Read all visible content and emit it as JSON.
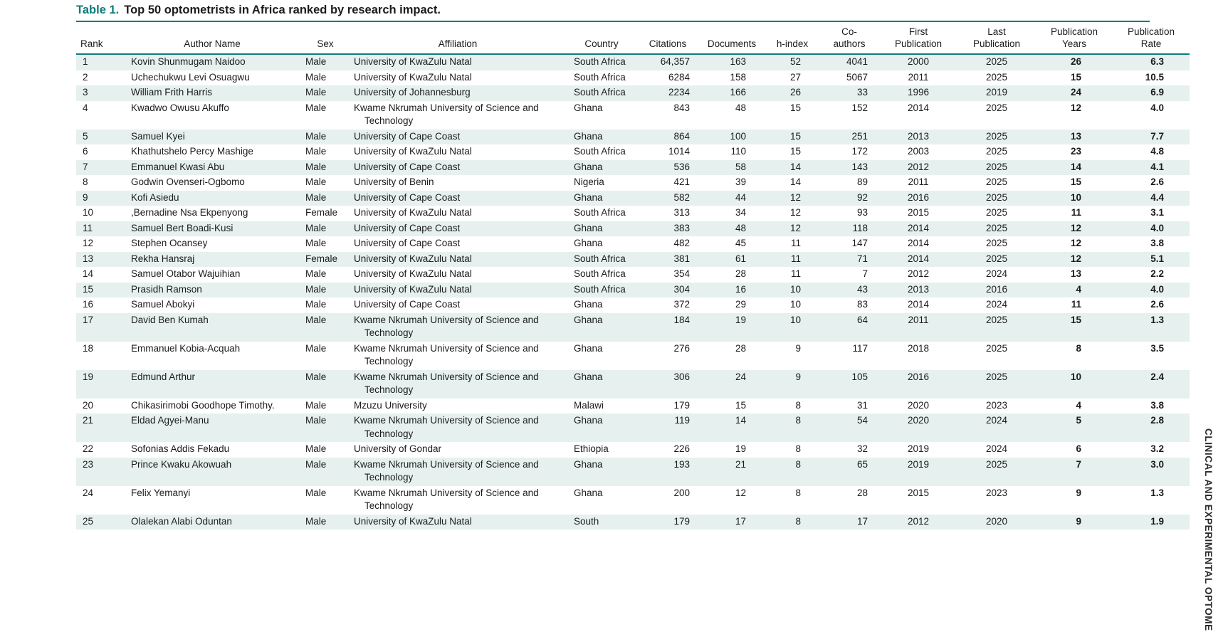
{
  "page": {
    "title_label": "Table 1.",
    "title_text": "Top 50 optometrists in Africa ranked by research impact.",
    "journal_sidebar_text": "CLINICAL AND EXPERIMENTAL OPTOME"
  },
  "colors": {
    "accent_teal": "#0e7c7b",
    "row_stripe": "#e6f0ef"
  },
  "table": {
    "columns": [
      {
        "key": "rank",
        "label": "Rank"
      },
      {
        "key": "author",
        "label": "Author Name"
      },
      {
        "key": "sex",
        "label": "Sex"
      },
      {
        "key": "affiliation",
        "label": "Affiliation"
      },
      {
        "key": "country",
        "label": "Country"
      },
      {
        "key": "citations",
        "label": "Citations"
      },
      {
        "key": "documents",
        "label": "Documents"
      },
      {
        "key": "h_index",
        "label": "h-index"
      },
      {
        "key": "co_authors",
        "label": "Co-authors"
      },
      {
        "key": "first_publication",
        "label": "First Publication"
      },
      {
        "key": "last_publication",
        "label": "Last Publication"
      },
      {
        "key": "publication_years",
        "label": "Publication Years"
      },
      {
        "key": "publication_rate",
        "label": "Publication Rate"
      }
    ],
    "rows": [
      [
        "1",
        "Kovin Shunmugam Naidoo",
        "Male",
        "University of KwaZulu Natal",
        "South Africa",
        "64,357",
        "163",
        "52",
        "4041",
        "2000",
        "2025",
        "26",
        "6.3"
      ],
      [
        "2",
        "Uchechukwu Levi Osuagwu",
        "Male",
        "University of KwaZulu Natal",
        "South Africa",
        "6284",
        "158",
        "27",
        "5067",
        "2011",
        "2025",
        "15",
        "10.5"
      ],
      [
        "3",
        "William Frith Harris",
        "Male",
        "University of Johannesburg",
        "South Africa",
        "2234",
        "166",
        "26",
        "33",
        "1996",
        "2019",
        "24",
        "6.9"
      ],
      [
        "4",
        "Kwadwo Owusu Akuffo",
        "Male",
        "Kwame Nkrumah University of Science and Technology",
        "Ghana",
        "843",
        "48",
        "15",
        "152",
        "2014",
        "2025",
        "12",
        "4.0"
      ],
      [
        "5",
        "Samuel Kyei",
        "Male",
        "University of Cape Coast",
        "Ghana",
        "864",
        "100",
        "15",
        "251",
        "2013",
        "2025",
        "13",
        "7.7"
      ],
      [
        "6",
        "Khathutshelo Percy Mashige",
        "Male",
        "University of KwaZulu Natal",
        "South Africa",
        "1014",
        "110",
        "15",
        "172",
        "2003",
        "2025",
        "23",
        "4.8"
      ],
      [
        "7",
        "Emmanuel Kwasi Abu",
        "Male",
        "University of Cape Coast",
        "Ghana",
        "536",
        "58",
        "14",
        "143",
        "2012",
        "2025",
        "14",
        "4.1"
      ],
      [
        "8",
        "Godwin Ovenseri-Ogbomo",
        "Male",
        "University of Benin",
        "Nigeria",
        "421",
        "39",
        "14",
        "89",
        "2011",
        "2025",
        "15",
        "2.6"
      ],
      [
        "9",
        "Kofi Asiedu",
        "Male",
        "University of Cape Coast",
        "Ghana",
        "582",
        "44",
        "12",
        "92",
        "2016",
        "2025",
        "10",
        "4.4"
      ],
      [
        "10",
        ",Bernadine Nsa Ekpenyong",
        "Female",
        "University of KwaZulu Natal",
        "South Africa",
        "313",
        "34",
        "12",
        "93",
        "2015",
        "2025",
        "11",
        "3.1"
      ],
      [
        "11",
        "Samuel Bert Boadi-Kusi",
        "Male",
        "University of Cape Coast",
        "Ghana",
        "383",
        "48",
        "12",
        "118",
        "2014",
        "2025",
        "12",
        "4.0"
      ],
      [
        "12",
        "Stephen Ocansey",
        "Male",
        "University of Cape Coast",
        "Ghana",
        "482",
        "45",
        "11",
        "147",
        "2014",
        "2025",
        "12",
        "3.8"
      ],
      [
        "13",
        "Rekha Hansraj",
        "Female",
        "University of KwaZulu Natal",
        "South Africa",
        "381",
        "61",
        "11",
        "71",
        "2014",
        "2025",
        "12",
        "5.1"
      ],
      [
        "14",
        "Samuel Otabor Wajuihian",
        "Male",
        "University of KwaZulu Natal",
        "South Africa",
        "354",
        "28",
        "11",
        "7",
        "2012",
        "2024",
        "13",
        "2.2"
      ],
      [
        "15",
        "Prasidh Ramson",
        "Male",
        "University of KwaZulu Natal",
        "South Africa",
        "304",
        "16",
        "10",
        "43",
        "2013",
        "2016",
        "4",
        "4.0"
      ],
      [
        "16",
        "Samuel Abokyi",
        "Male",
        "University of Cape Coast",
        "Ghana",
        "372",
        "29",
        "10",
        "83",
        "2014",
        "2024",
        "11",
        "2.6"
      ],
      [
        "17",
        "David Ben Kumah",
        "Male",
        "Kwame Nkrumah University of Science and Technology",
        "Ghana",
        "184",
        "19",
        "10",
        "64",
        "2011",
        "2025",
        "15",
        "1.3"
      ],
      [
        "18",
        "Emmanuel Kobia-Acquah",
        "Male",
        "Kwame Nkrumah University of Science and Technology",
        "Ghana",
        "276",
        "28",
        "9",
        "117",
        "2018",
        "2025",
        "8",
        "3.5"
      ],
      [
        "19",
        "Edmund Arthur",
        "Male",
        "Kwame Nkrumah University of Science and Technology",
        "Ghana",
        "306",
        "24",
        "9",
        "105",
        "2016",
        "2025",
        "10",
        "2.4"
      ],
      [
        "20",
        "Chikasirimobi Goodhope Timothy.",
        "Male",
        "Mzuzu University",
        "Malawi",
        "179",
        "15",
        "8",
        "31",
        "2020",
        "2023",
        "4",
        "3.8"
      ],
      [
        "21",
        "Eldad Agyei-Manu",
        "Male",
        "Kwame Nkrumah University of Science and Technology",
        "Ghana",
        "119",
        "14",
        "8",
        "54",
        "2020",
        "2024",
        "5",
        "2.8"
      ],
      [
        "22",
        "Sofonias Addis Fekadu",
        "Male",
        "University of Gondar",
        "Ethiopia",
        "226",
        "19",
        "8",
        "32",
        "2019",
        "2024",
        "6",
        "3.2"
      ],
      [
        "23",
        "Prince Kwaku Akowuah",
        "Male",
        "Kwame Nkrumah University of Science and Technology",
        "Ghana",
        "193",
        "21",
        "8",
        "65",
        "2019",
        "2025",
        "7",
        "3.0"
      ],
      [
        "24",
        "Felix Yemanyi",
        "Male",
        "Kwame Nkrumah University of Science and Technology",
        "Ghana",
        "200",
        "12",
        "8",
        "28",
        "2015",
        "2023",
        "9",
        "1.3"
      ],
      [
        "25",
        "Olalekan Alabi Oduntan",
        "Male",
        "University of KwaZulu Natal",
        "South",
        "179",
        "17",
        "8",
        "17",
        "2012",
        "2020",
        "9",
        "1.9"
      ]
    ]
  }
}
